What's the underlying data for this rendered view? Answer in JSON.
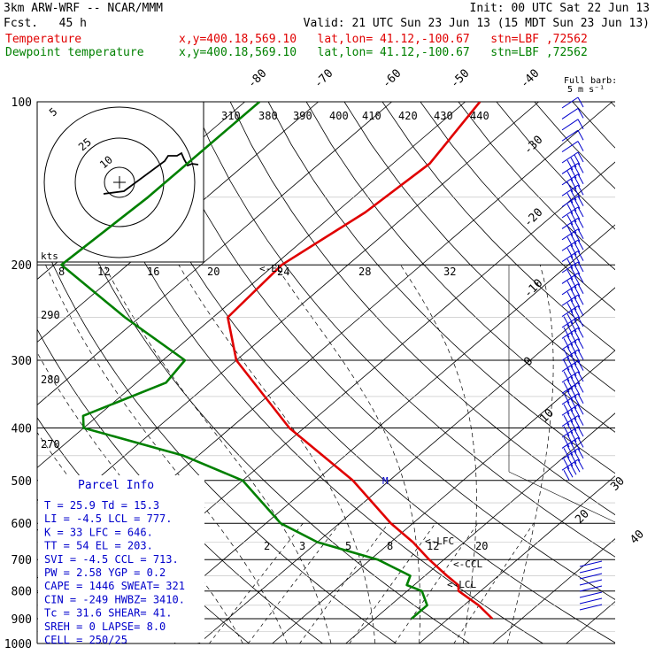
{
  "header": {
    "model": "3km ARW-WRF -- NCAR/MMM",
    "init": "Init: 00 UTC Sat 22 Jun 13",
    "fcst": "Fcst.   45 h",
    "valid": "Valid: 21 UTC Sun 23 Jun 13 (15 MDT Sun 23 Jun 13)",
    "temp_label": "Temperature",
    "dew_label": "Dewpoint temperature",
    "loc": "x,y=400.18,569.10   lat,lon= 41.12,-100.67   stn=LBF ,72562",
    "red": "#e00000",
    "green": "#008000"
  },
  "chart_data": {
    "type": "line",
    "title": "",
    "ylabel": "",
    "pressure_levels": [
      "100",
      "200",
      "300",
      "400",
      "500",
      "600",
      "700",
      "800",
      "900",
      "1000"
    ],
    "isotherm_labels": [
      "-80",
      "-70",
      "-60",
      "-50",
      "-40",
      "-30",
      "-20",
      "-10",
      "0",
      "10",
      "20",
      "30",
      "40"
    ],
    "theta_labels": [
      "310",
      "380",
      "390",
      "400",
      "410",
      "420",
      "430",
      "440"
    ],
    "theta_left_labels": [
      "290",
      "280",
      "270"
    ],
    "mixing_ratio_labels": [
      "2",
      "3",
      "5",
      "8",
      "12",
      "20"
    ],
    "hodo_axis_labels": [
      "8",
      "12",
      "16",
      "20",
      "24",
      "28",
      "32"
    ],
    "hodo_ring_labels": [
      "5",
      "25",
      "10"
    ],
    "kts_label": "kts",
    "full_barb": "Full barb:",
    "full_barb_unit": "5 m s⁻¹",
    "level_markers": [
      {
        "label": "<-LFC",
        "pressure": 646
      },
      {
        "label": "<-CCL",
        "pressure": 713
      },
      {
        "label": "<-LCL",
        "pressure": 777
      },
      {
        "label": "<-EL",
        "pressure": 203
      },
      {
        "label": "M",
        "pressure": 500
      }
    ],
    "series": [
      {
        "name": "Temperature",
        "points": [
          [
            100,
            -58
          ],
          [
            130,
            -55
          ],
          [
            160,
            -56
          ],
          [
            200,
            -59
          ],
          [
            250,
            -58
          ],
          [
            300,
            -50
          ],
          [
            400,
            -32
          ],
          [
            500,
            -15
          ],
          [
            600,
            -3
          ],
          [
            650,
            3
          ],
          [
            700,
            8
          ],
          [
            750,
            13
          ],
          [
            780,
            16
          ],
          [
            800,
            17
          ],
          [
            850,
            22
          ],
          [
            900,
            26
          ]
        ]
      },
      {
        "name": "Dewpoint temperature",
        "points": [
          [
            100,
            -88
          ],
          [
            150,
            -88
          ],
          [
            200,
            -89
          ],
          [
            250,
            -72
          ],
          [
            300,
            -57
          ],
          [
            330,
            -56
          ],
          [
            380,
            -62
          ],
          [
            400,
            -60
          ],
          [
            450,
            -42
          ],
          [
            500,
            -30
          ],
          [
            600,
            -18
          ],
          [
            650,
            -10
          ],
          [
            700,
            1
          ],
          [
            750,
            8
          ],
          [
            780,
            9
          ],
          [
            800,
            12
          ],
          [
            850,
            15
          ],
          [
            900,
            15
          ]
        ]
      }
    ]
  },
  "parcel": {
    "title": "Parcel Info",
    "rows": [
      "T   =    25.9  Td =  15.3",
      "LI  =    -4.5  LCL =  777.",
      "K   =      33  LFC =  646.",
      "TT  =      54  EL  =  203.",
      "SVI =    -4.5  CCL =  713.",
      "PW  =    2.58  YGP =   0.2",
      "CAPE =   1446  SWEAT=  321",
      "CIN  =   -249  HWBZ= 3410.",
      "Tc  =    31.6  SHEAR=  41.",
      "SREH =      0  LAPSE=  8.0",
      "CELL = 250/25"
    ]
  }
}
